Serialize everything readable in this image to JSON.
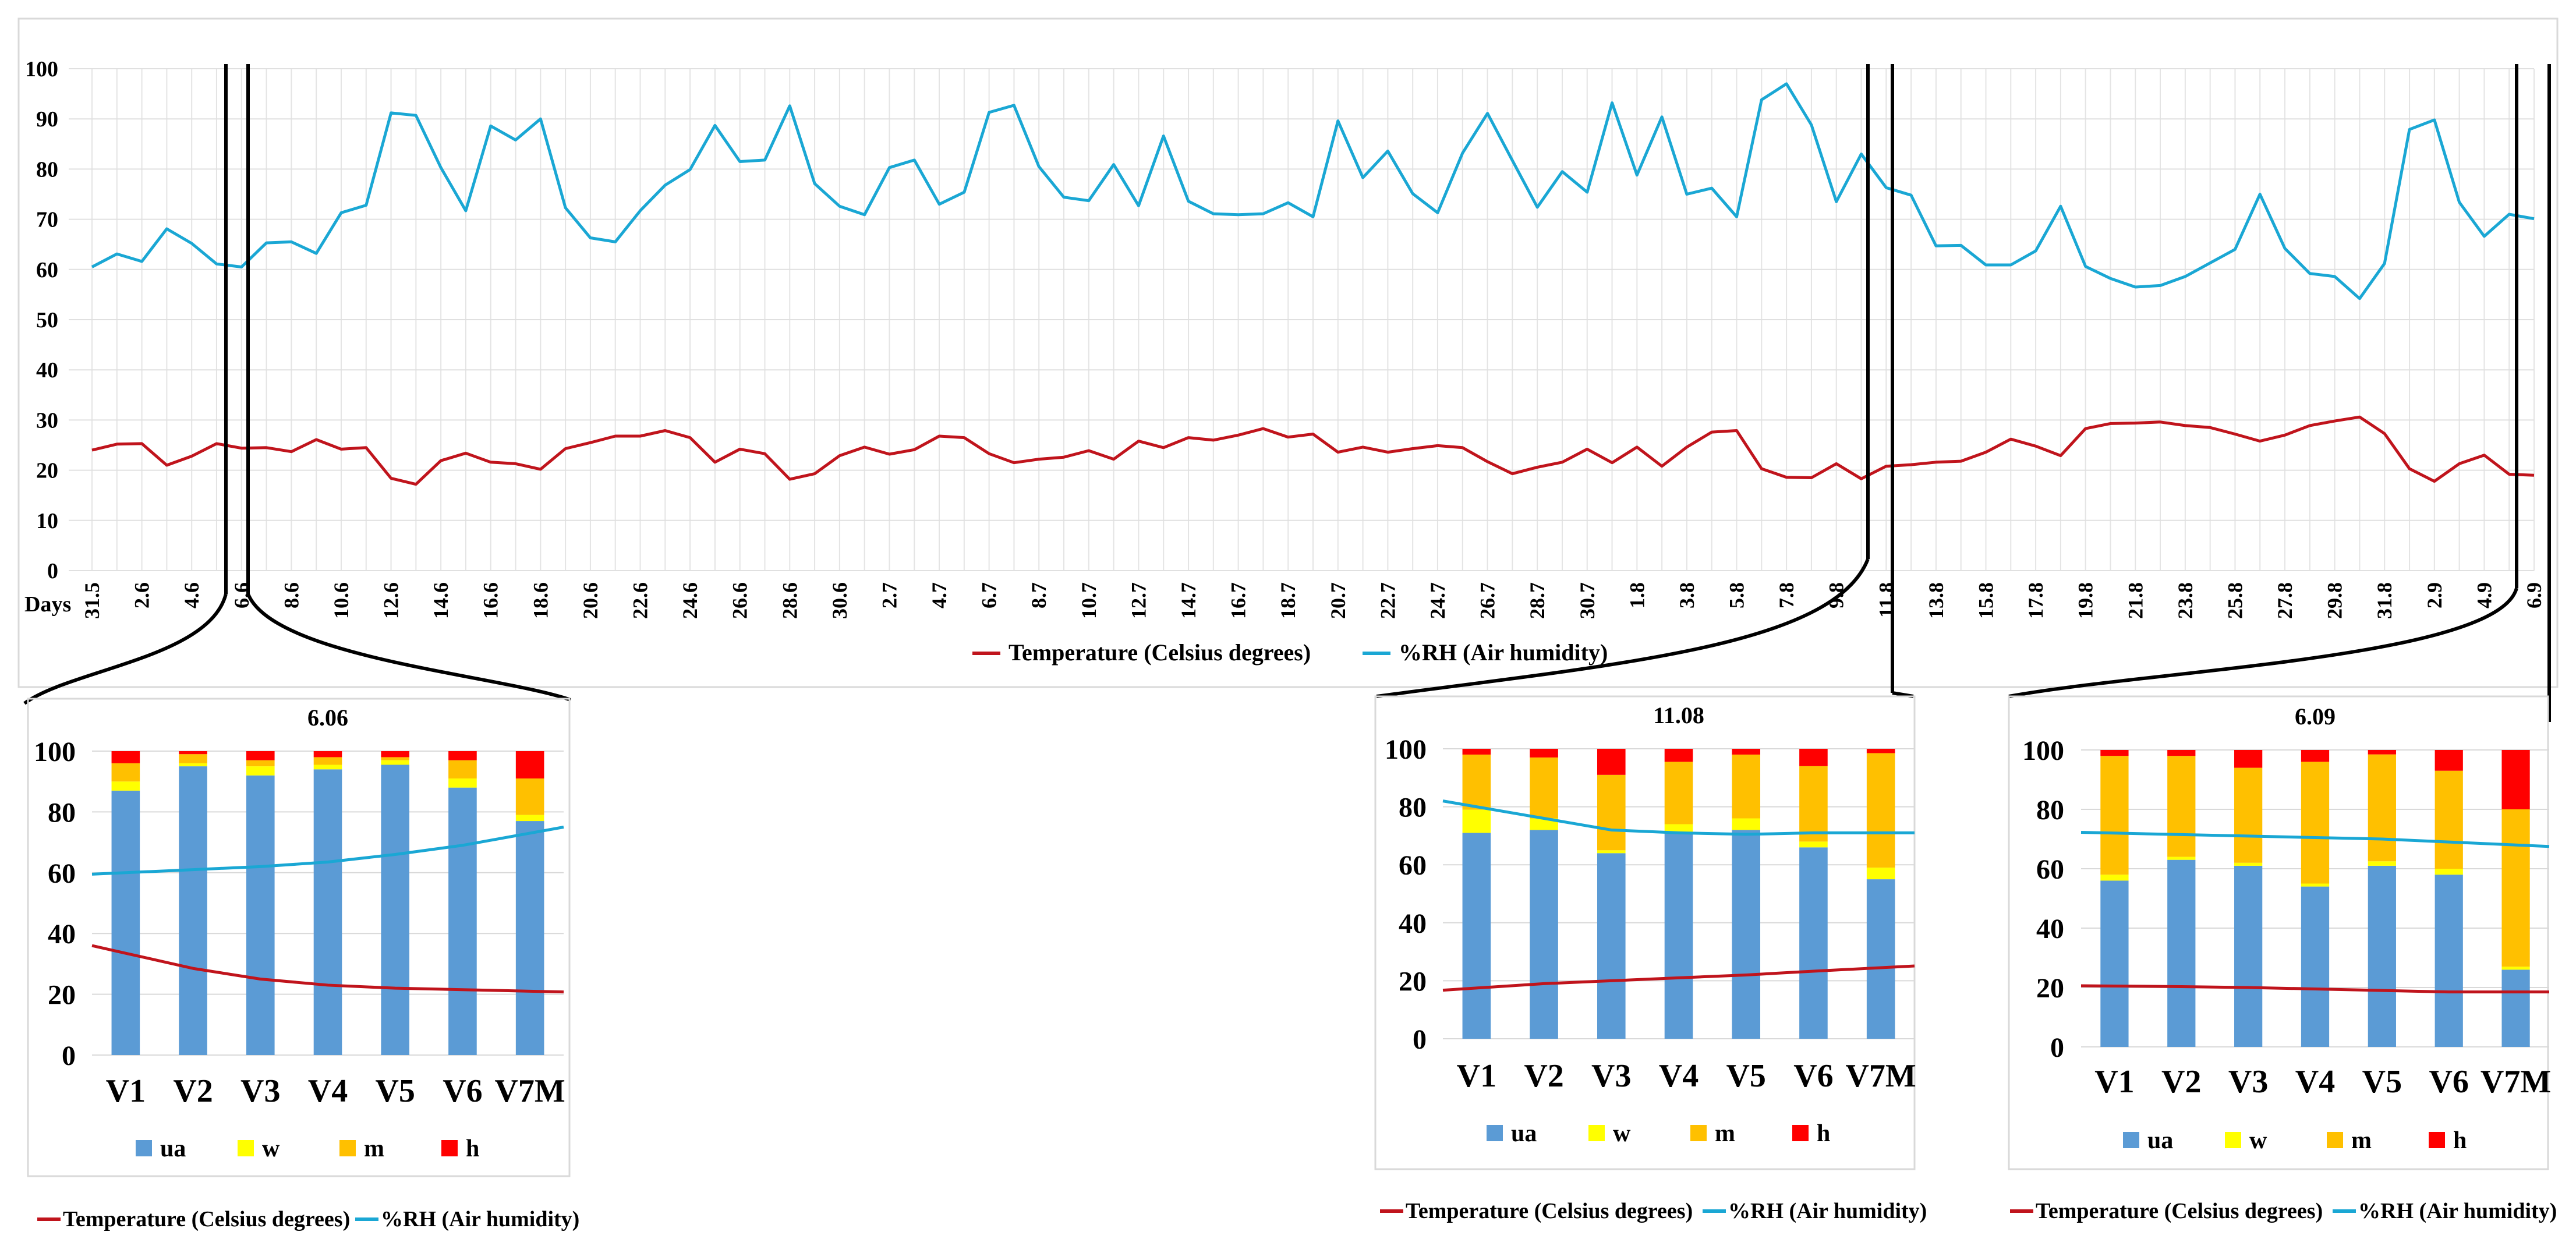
{
  "chart_data": [
    {
      "type": "line",
      "id": "main",
      "xlabel": "Days",
      "ylim": [
        0,
        100
      ],
      "yticks": [
        0,
        10,
        20,
        30,
        40,
        50,
        60,
        70,
        80,
        90,
        100
      ],
      "xtick_labels": [
        "31.5",
        "2.6",
        "4.6",
        "6.6",
        "8.6",
        "10.6",
        "12.6",
        "14.6",
        "16.6",
        "18.6",
        "20.6",
        "22.6",
        "24.6",
        "26.6",
        "28.6",
        "30.6",
        "2.7",
        "4.7",
        "6.7",
        "8.7",
        "10.7",
        "12.7",
        "14.7",
        "16.7",
        "18.7",
        "20.7",
        "22.7",
        "24.7",
        "26.7",
        "28.7",
        "30.7",
        "1.8",
        "3.8",
        "5.8",
        "7.8",
        "9.8",
        "11.8",
        "13.8",
        "15.8",
        "17.8",
        "19.8",
        "21.8",
        "23.8",
        "25.8",
        "27.8",
        "29.8",
        "31.8",
        "2.9",
        "4.9",
        "6.9"
      ],
      "series": [
        {
          "name": "Temperature (Celsius degrees)",
          "color": "#c0141c",
          "values": [
            24,
            25.2,
            25.3,
            21,
            22.8,
            25.3,
            24.4,
            24.5,
            23.7,
            26.1,
            24.2,
            24.5,
            18.4,
            17.2,
            21.9,
            23.4,
            21.6,
            21.3,
            20.2,
            24.3,
            25.5,
            26.8,
            26.8,
            27.9,
            26.5,
            21.6,
            24.2,
            23.3,
            18.2,
            19.3,
            22.9,
            24.6,
            23.2,
            24.1,
            26.8,
            26.5,
            23.3,
            21.5,
            22.2,
            22.6,
            23.9,
            22.2,
            25.8,
            24.5,
            26.5,
            26,
            27,
            28.3,
            26.6,
            27.2,
            23.6,
            24.6,
            23.6,
            24.3,
            24.9,
            24.5,
            21.7,
            19.3,
            20.6,
            21.6,
            24.2,
            21.5,
            24.6,
            20.8,
            24.6,
            27.6,
            27.9,
            20.3,
            18.6,
            18.5,
            21.3,
            18.3,
            20.8,
            21.1,
            21.6,
            21.8,
            23.6,
            26.2,
            24.8,
            22.9,
            28.3,
            29.3,
            29.4,
            29.6,
            28.9,
            28.5,
            27.2,
            25.8,
            27,
            28.9,
            29.8,
            30.6,
            27.3,
            20.3,
            17.8,
            21.3,
            23,
            19.2,
            19
          ]
        },
        {
          "name": "%RH (Air humidity)",
          "color": "#1aa7d4",
          "values": [
            60.5,
            63.1,
            61.6,
            68.1,
            65.2,
            61.1,
            60.5,
            65.3,
            65.5,
            63.2,
            71.3,
            72.8,
            91.2,
            90.7,
            80.3,
            71.7,
            88.6,
            85.8,
            90,
            72.3,
            66.3,
            65.5,
            71.7,
            76.8,
            79.9,
            88.7,
            81.5,
            81.8,
            92.6,
            77.1,
            72.6,
            70.9,
            80.3,
            81.8,
            73,
            75.4,
            91.3,
            92.7,
            80.5,
            74.4,
            73.7,
            80.9,
            72.7,
            86.6,
            73.6,
            71.1,
            70.9,
            71.1,
            73.3,
            70.5,
            89.6,
            78.3,
            83.6,
            75.1,
            71.3,
            83.2,
            91.1,
            81.7,
            72.4,
            79.5,
            75.4,
            93.2,
            78.8,
            90.4,
            75,
            76.2,
            70.5,
            93.8,
            97,
            88.8,
            73.5,
            83,
            76.3,
            74.8,
            64.7,
            64.8,
            60.9,
            60.9,
            63.7,
            72.6,
            60.6,
            58.2,
            56.5,
            56.8,
            58.6,
            61.3,
            64,
            75,
            64.2,
            59.2,
            58.6,
            54.2,
            61.2,
            87.9,
            89.8,
            73.4,
            66.6,
            71,
            70.1
          ]
        }
      ],
      "legend": [
        "Temperature (Celsius degrees)",
        "%RH (Air humidity)"
      ]
    },
    {
      "type": "bar",
      "id": "p1",
      "title": "6.06",
      "categories": [
        "V1",
        "V2",
        "V3",
        "V4",
        "V5",
        "V6",
        "V7M"
      ],
      "ylim": [
        0,
        100
      ],
      "yticks": [
        0,
        20,
        40,
        60,
        80,
        100
      ],
      "series": [
        {
          "name": "ua",
          "color": "#5b9bd5",
          "values": [
            87,
            95,
            92,
            94,
            95.5,
            88,
            77
          ]
        },
        {
          "name": "w",
          "color": "#ffff00",
          "values": [
            3,
            1,
            3,
            1.5,
            1.5,
            3,
            2
          ]
        },
        {
          "name": "m",
          "color": "#ffc000",
          "values": [
            6,
            3,
            2,
            2.5,
            1,
            6,
            12
          ]
        },
        {
          "name": "h",
          "color": "#ff0000",
          "values": [
            4,
            1,
            3,
            2,
            2,
            3,
            9
          ]
        }
      ],
      "temperature": [
        33.5,
        28.5,
        25,
        23,
        22,
        21.5,
        21
      ],
      "humidity": [
        60,
        61,
        62,
        63.5,
        66,
        69,
        73
      ],
      "legend": [
        "ua",
        "w",
        "m",
        "h"
      ],
      "line_legend": [
        "Temperature (Celsius degrees)",
        "%RH (Air humidity)"
      ]
    },
    {
      "type": "bar",
      "id": "p2",
      "title": "11.08",
      "categories": [
        "V1",
        "V2",
        "V3",
        "V4",
        "V5",
        "V6",
        "V7M"
      ],
      "ylim": [
        0,
        100
      ],
      "yticks": [
        0,
        20,
        40,
        60,
        80,
        100
      ],
      "series": [
        {
          "name": "ua",
          "color": "#5b9bd5",
          "values": [
            71,
            72,
            64,
            71,
            72,
            66,
            55
          ]
        },
        {
          "name": "w",
          "color": "#ffff00",
          "values": [
            8,
            4,
            1,
            3,
            4,
            2,
            4
          ]
        },
        {
          "name": "m",
          "color": "#ffc000",
          "values": [
            19,
            21,
            26,
            21.5,
            22,
            26,
            39.5
          ]
        },
        {
          "name": "h",
          "color": "#ff0000",
          "values": [
            2,
            3,
            9,
            4.5,
            2,
            6,
            1.5
          ]
        }
      ],
      "temperature": [
        17.5,
        19,
        20,
        21,
        22,
        23.3,
        24.5
      ],
      "humidity": [
        80,
        76,
        72,
        71,
        70.5,
        71,
        71
      ],
      "legend": [
        "ua",
        "w",
        "m",
        "h"
      ],
      "line_legend": [
        "Temperature (Celsius degrees)",
        "%RH (Air humidity)"
      ]
    },
    {
      "type": "bar",
      "id": "p3",
      "title": "6.09",
      "categories": [
        "V1",
        "V2",
        "V3",
        "V4",
        "V5",
        "V6",
        "V7M"
      ],
      "ylim": [
        0,
        100
      ],
      "yticks": [
        0,
        20,
        40,
        60,
        80,
        100
      ],
      "series": [
        {
          "name": "ua",
          "color": "#5b9bd5",
          "values": [
            56,
            63,
            61,
            54,
            61,
            58,
            26
          ]
        },
        {
          "name": "w",
          "color": "#ffff00",
          "values": [
            2,
            1,
            1,
            1,
            1.5,
            2,
            1
          ]
        },
        {
          "name": "m",
          "color": "#ffc000",
          "values": [
            40,
            34,
            32,
            41,
            36,
            33,
            53
          ]
        },
        {
          "name": "h",
          "color": "#ff0000",
          "values": [
            2,
            2,
            6,
            4,
            1.5,
            7,
            20
          ]
        }
      ],
      "temperature": [
        20.5,
        20.3,
        20,
        19.5,
        19,
        18.5,
        18.5
      ],
      "humidity": [
        72,
        71.5,
        71,
        70.5,
        70,
        69,
        68
      ],
      "legend": [
        "ua",
        "w",
        "m",
        "h"
      ],
      "line_legend": [
        "Temperature (Celsius degrees)",
        "%RH (Air humidity)"
      ]
    }
  ]
}
